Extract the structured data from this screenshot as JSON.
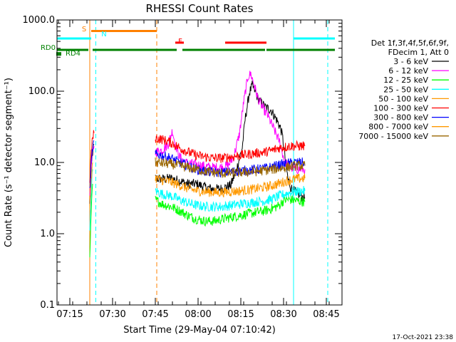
{
  "chart_data": {
    "type": "line",
    "title": "RHESSI Count Rates",
    "xlabel": "Start Time (29-May-04 07:10:42)",
    "ylabel": "Count Rate (s⁻¹ detector segment⁻¹)",
    "x_unit": "minutes since 07:10:42",
    "xlim": [
      0,
      100
    ],
    "ylim": [
      0.1,
      1000
    ],
    "y_scale": "log",
    "grid": false,
    "legend_position": "right",
    "x_ticks": [
      {
        "x": 4.5,
        "label": "07:15"
      },
      {
        "x": 19.5,
        "label": "07:30"
      },
      {
        "x": 34.5,
        "label": "07:45"
      },
      {
        "x": 49.5,
        "label": "08:00"
      },
      {
        "x": 64.5,
        "label": "08:15"
      },
      {
        "x": 79.5,
        "label": "08:30"
      },
      {
        "x": 94.5,
        "label": "08:45"
      }
    ],
    "y_ticks": [
      {
        "y": 0.1,
        "label": "0.1"
      },
      {
        "y": 1,
        "label": "1.0"
      },
      {
        "y": 10,
        "label": "10.0"
      },
      {
        "y": 100,
        "label": "100.0"
      },
      {
        "y": 1000,
        "label": "1000.0"
      }
    ],
    "legend_header": [
      "Det 1f,3f,4f,5f,6f,9f,",
      "FDecim 1, Att 0"
    ],
    "series": [
      {
        "name": "3 - 6 keV",
        "color": "#000000",
        "segments": [
          {
            "x": [
              11.5,
              12.0,
              12.5,
              13.0
            ],
            "y": [
              2.5,
              8,
              14,
              18
            ]
          },
          {
            "x": [
              34.5,
              37,
              40,
              43,
              46,
              49,
              52,
              55,
              58,
              61,
              63,
              65,
              66,
              67.5,
              68.5,
              69.5,
              70.5,
              71.5,
              73,
              75,
              77,
              78.5,
              79.2,
              80,
              81,
              82,
              83,
              84,
              85,
              86,
              87
            ],
            "y": [
              6.0,
              5.8,
              6.0,
              5.5,
              5.0,
              5.0,
              4.5,
              4.2,
              4.3,
              4.8,
              8,
              16,
              40,
              95,
              120,
              100,
              80,
              70,
              60,
              55,
              40,
              30,
              22,
              12,
              6,
              4.5,
              4.0,
              3.8,
              3.5,
              3.3,
              3.2
            ]
          }
        ]
      },
      {
        "name": "6 - 12 keV",
        "color": "#ff00ff",
        "segments": [
          {
            "x": [
              11.5,
              12.0,
              12.5,
              13.0
            ],
            "y": [
              3.5,
              9,
              14,
              17
            ]
          },
          {
            "x": [
              34.5,
              37,
              39,
              40.5,
              41.5,
              43,
              45,
              48,
              51,
              54,
              57,
              60,
              62,
              64,
              65.5,
              67,
              68,
              69,
              70.5,
              72,
              74,
              76,
              78,
              79,
              80,
              82,
              84,
              87
            ],
            "y": [
              14,
              15,
              18,
              28,
              18,
              12,
              10,
              9.5,
              9,
              8.5,
              8.5,
              9,
              12,
              25,
              70,
              160,
              175,
              130,
              80,
              60,
              45,
              30,
              20,
              14,
              10,
              8.5,
              8,
              8
            ]
          }
        ]
      },
      {
        "name": "12 - 25 keV",
        "color": "#00ff00",
        "segments": [
          {
            "x": [
              11.5,
              12.0,
              12.5
            ],
            "y": [
              0.4,
              2,
              5
            ]
          },
          {
            "x": [
              34.5,
              37,
              40,
              43,
              46,
              49,
              52,
              55,
              58,
              61,
              64,
              67,
              70,
              73,
              76,
              78,
              79,
              80,
              82,
              84,
              87
            ],
            "y": [
              3.0,
              2.6,
              2.4,
              2.1,
              1.8,
              1.6,
              1.5,
              1.5,
              1.6,
              1.7,
              1.8,
              1.9,
              2.0,
              2.1,
              2.3,
              2.5,
              2.8,
              3.0,
              3.0,
              2.9,
              2.8
            ]
          }
        ]
      },
      {
        "name": "25 - 50 keV",
        "color": "#00ffff",
        "segments": [
          {
            "x": [
              11.5,
              12.0,
              12.5
            ],
            "y": [
              1,
              4,
              8
            ]
          },
          {
            "x": [
              34.5,
              37,
              40,
              43,
              46,
              49,
              52,
              55,
              58,
              61,
              64,
              67,
              70,
              73,
              76,
              78,
              80,
              82,
              84,
              87
            ],
            "y": [
              4.0,
              3.6,
              3.4,
              3.0,
              2.7,
              2.5,
              2.4,
              2.4,
              2.4,
              2.5,
              2.6,
              2.7,
              2.8,
              2.9,
              3.1,
              3.4,
              3.6,
              3.8,
              3.9,
              4.0
            ]
          }
        ]
      },
      {
        "name": "50 - 100 keV",
        "color": "#ff9900",
        "segments": [
          {
            "x": [
              11.5,
              12.0,
              12.5
            ],
            "y": [
              2,
              6,
              10
            ]
          },
          {
            "x": [
              34.5,
              37,
              40,
              43,
              46,
              49,
              52,
              55,
              58,
              61,
              64,
              67,
              70,
              73,
              76,
              78,
              80,
              82,
              84,
              87
            ],
            "y": [
              6.0,
              5.6,
              5.3,
              4.8,
              4.3,
              4.0,
              3.9,
              3.8,
              3.8,
              3.9,
              4.0,
              4.1,
              4.3,
              4.5,
              4.8,
              5.1,
              5.4,
              5.7,
              5.9,
              6.0
            ]
          }
        ]
      },
      {
        "name": "100 - 300 keV",
        "color": "#ff0000",
        "segments": [
          {
            "x": [
              11.5,
              12.0,
              12.5,
              13.0
            ],
            "y": [
              5,
              14,
              22,
              26
            ]
          },
          {
            "x": [
              34.5,
              37,
              40,
              43,
              46,
              49,
              52,
              55,
              58,
              61,
              64,
              67,
              70,
              73,
              76,
              78,
              80,
              82,
              84,
              87
            ],
            "y": [
              22,
              21,
              19,
              16,
              14,
              12.5,
              12,
              11.5,
              11.5,
              12,
              12.5,
              13,
              13.5,
              14,
              15,
              16,
              16.5,
              17,
              17,
              17
            ]
          }
        ]
      },
      {
        "name": "300 - 800 keV",
        "color": "#0000ff",
        "segments": [
          {
            "x": [
              11.5,
              12.0,
              12.5,
              13.0
            ],
            "y": [
              4,
              10,
              16,
              20
            ]
          },
          {
            "x": [
              34.5,
              37,
              40,
              43,
              46,
              49,
              52,
              55,
              58,
              61,
              64,
              67,
              70,
              73,
              76,
              78,
              80,
              82,
              84,
              87
            ],
            "y": [
              13,
              12.5,
              11.5,
              10,
              9,
              8,
              7.5,
              7.2,
              7.2,
              7.4,
              7.6,
              7.8,
              8,
              8.3,
              8.8,
              9.2,
              9.5,
              9.8,
              10,
              10
            ]
          }
        ]
      },
      {
        "name": "800 - 7000 keV",
        "color": "#ff9900",
        "segments": []
      },
      {
        "name": "7000 - 15000 keV",
        "color": "#996600",
        "segments": [
          {
            "x": [
              34.5,
              40,
              46,
              52,
              58,
              64,
              70,
              76,
              80,
              84,
              87
            ],
            "y": [
              10,
              9.5,
              8.5,
              7.5,
              7.0,
              7.2,
              7.5,
              8.0,
              8.5,
              9.0,
              9.0
            ]
          }
        ]
      }
    ],
    "annotations": {
      "vlines": [
        {
          "x": 0,
          "color": "#00ffff",
          "style": "solid"
        },
        {
          "x": 11.5,
          "color": "#ff8000",
          "style": "solid"
        },
        {
          "x": 13.6,
          "color": "#00ffff",
          "style": "dashed"
        },
        {
          "x": 35.0,
          "color": "#ff8000",
          "style": "dashed"
        },
        {
          "x": 83.0,
          "color": "#00ffff",
          "style": "solid"
        },
        {
          "x": 95.0,
          "color": "#00ffff",
          "style": "dashed"
        }
      ],
      "state_bars": [
        {
          "label": "S",
          "label_color": "#ff8000",
          "color": "#ff8000",
          "y": 700,
          "ranges": [
            [
              12,
              35
            ]
          ]
        },
        {
          "label": "N",
          "label_color": "#00ffff",
          "color": "#00ffff",
          "y": 550,
          "ranges": [
            [
              0,
              12
            ],
            [
              83,
              97.5
            ]
          ]
        },
        {
          "label": "F",
          "label_color": "#ff0000",
          "color": "#ff0000",
          "y": 480,
          "ranges": [
            [
              41.5,
              44.5
            ],
            [
              59,
              73.5
            ]
          ]
        },
        {
          "label": "RD0",
          "label_color": "#008000",
          "color": "#008000",
          "y": 380,
          "ranges": [
            [
              0,
              11
            ],
            [
              12.5,
              35
            ],
            [
              35,
              42
            ],
            [
              44,
              73
            ],
            [
              73.5,
              97.5
            ]
          ]
        },
        {
          "label": "RD4",
          "label_color": "#008000",
          "color": "#008000",
          "y": 330,
          "ranges": [
            [
              0,
              1.2
            ]
          ]
        }
      ]
    },
    "footer_date": "17-Oct-2021 23:38"
  }
}
